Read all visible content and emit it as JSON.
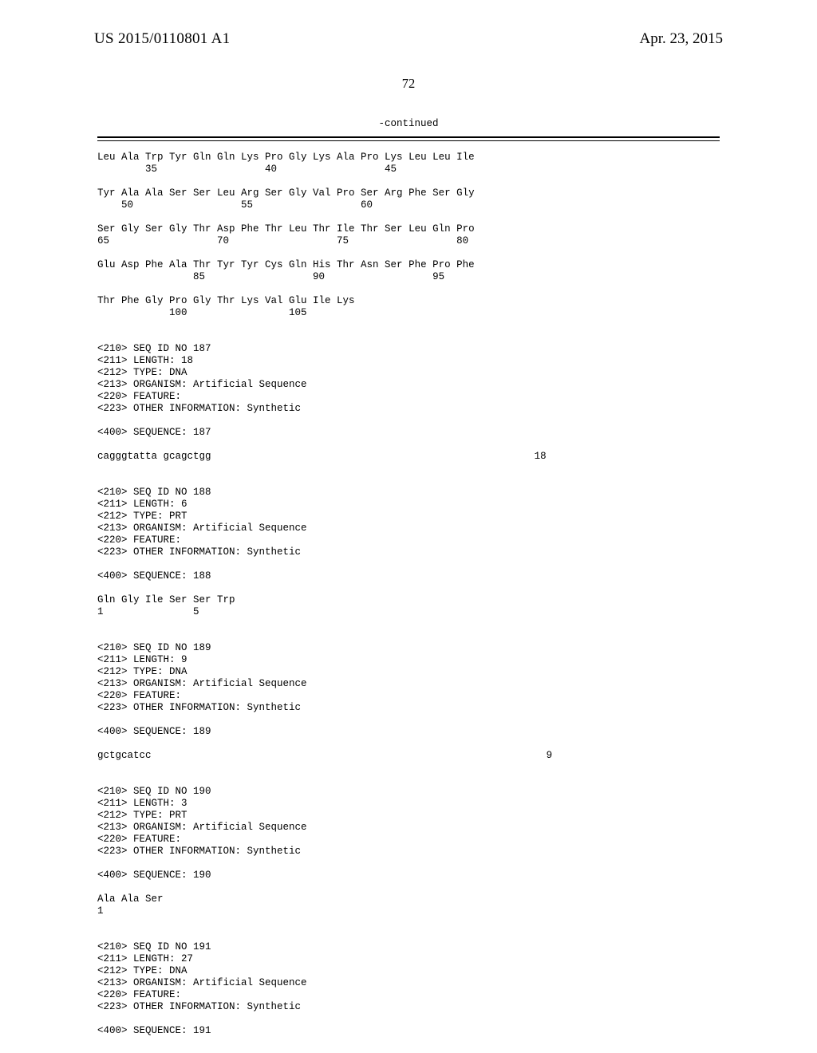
{
  "header": {
    "pub_number": "US 2015/0110801 A1",
    "pub_date": "Apr. 23, 2015"
  },
  "page_number": "72",
  "continued_label": "-continued",
  "seq_text": "Leu Ala Trp Tyr Gln Gln Lys Pro Gly Lys Ala Pro Lys Leu Leu Ile\n        35                  40                  45\n\nTyr Ala Ala Ser Ser Leu Arg Ser Gly Val Pro Ser Arg Phe Ser Gly\n    50                  55                  60\n\nSer Gly Ser Gly Thr Asp Phe Thr Leu Thr Ile Thr Ser Leu Gln Pro\n65                  70                  75                  80\n\nGlu Asp Phe Ala Thr Tyr Tyr Cys Gln His Thr Asn Ser Phe Pro Phe\n                85                  90                  95\n\nThr Phe Gly Pro Gly Thr Lys Val Glu Ile Lys\n            100                 105\n\n\n<210> SEQ ID NO 187\n<211> LENGTH: 18\n<212> TYPE: DNA\n<213> ORGANISM: Artificial Sequence\n<220> FEATURE:\n<223> OTHER INFORMATION: Synthetic\n\n<400> SEQUENCE: 187\n\ncagggtatta gcagctgg                                                      18\n\n\n<210> SEQ ID NO 188\n<211> LENGTH: 6\n<212> TYPE: PRT\n<213> ORGANISM: Artificial Sequence\n<220> FEATURE:\n<223> OTHER INFORMATION: Synthetic\n\n<400> SEQUENCE: 188\n\nGln Gly Ile Ser Ser Trp\n1               5\n\n\n<210> SEQ ID NO 189\n<211> LENGTH: 9\n<212> TYPE: DNA\n<213> ORGANISM: Artificial Sequence\n<220> FEATURE:\n<223> OTHER INFORMATION: Synthetic\n\n<400> SEQUENCE: 189\n\ngctgcatcc                                                                  9\n\n\n<210> SEQ ID NO 190\n<211> LENGTH: 3\n<212> TYPE: PRT\n<213> ORGANISM: Artificial Sequence\n<220> FEATURE:\n<223> OTHER INFORMATION: Synthetic\n\n<400> SEQUENCE: 190\n\nAla Ala Ser\n1\n\n\n<210> SEQ ID NO 191\n<211> LENGTH: 27\n<212> TYPE: DNA\n<213> ORGANISM: Artificial Sequence\n<220> FEATURE:\n<223> OTHER INFORMATION: Synthetic\n\n<400> SEQUENCE: 191"
}
